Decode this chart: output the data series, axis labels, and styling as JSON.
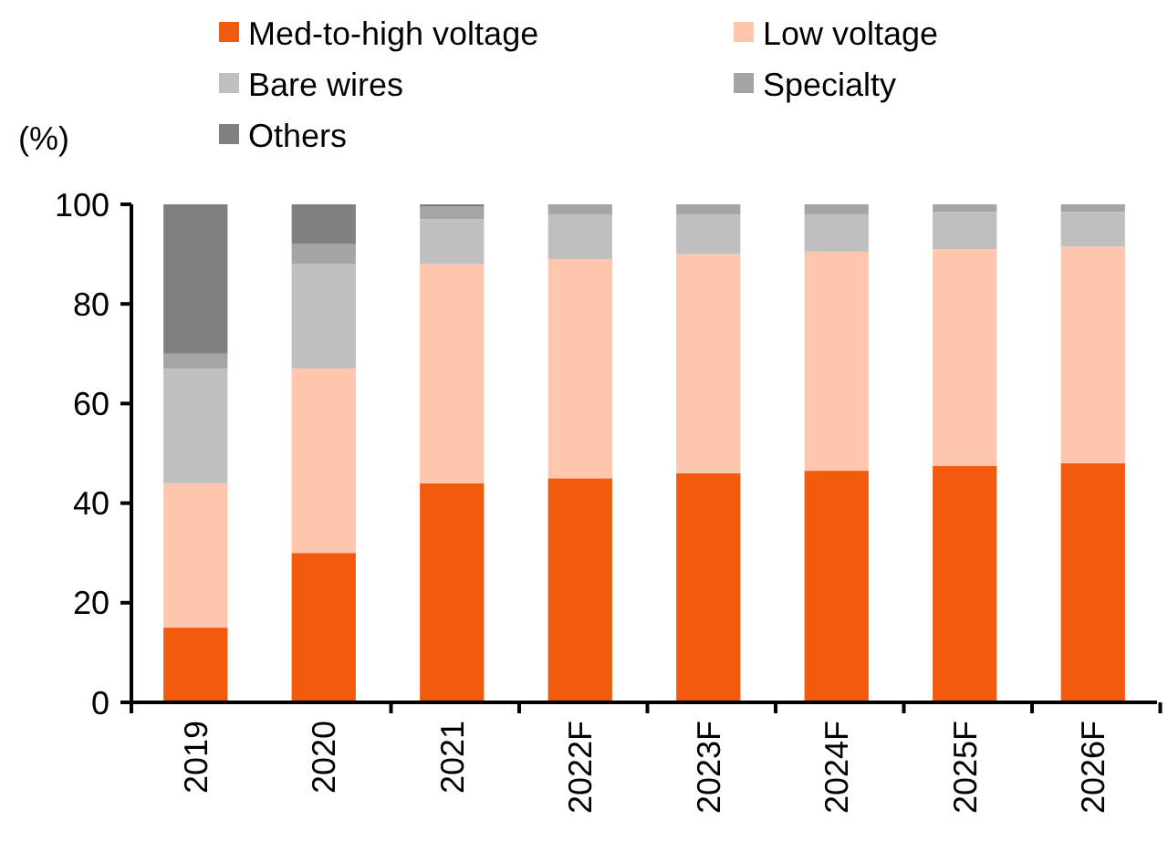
{
  "chart_data": {
    "type": "bar",
    "stacked": true,
    "ylabel": "(%)",
    "categories": [
      "2019",
      "2020",
      "2021",
      "2022F",
      "2023F",
      "2024F",
      "2025F",
      "2026F"
    ],
    "series": [
      {
        "name": "Med-to-high voltage",
        "color": "#f25a0e",
        "values": [
          15,
          30,
          44,
          45,
          46,
          46.5,
          47.5,
          48
        ]
      },
      {
        "name": "Low voltage",
        "color": "#fec6ac",
        "values": [
          29,
          37,
          44,
          44,
          44,
          44,
          43.5,
          43.5
        ]
      },
      {
        "name": "Bare wires",
        "color": "#bfbfbf",
        "values": [
          23,
          21,
          9,
          9,
          8,
          7.5,
          7.5,
          7
        ]
      },
      {
        "name": "Specialty",
        "color": "#a5a5a5",
        "values": [
          3,
          4,
          2.5,
          2,
          2,
          2,
          1.5,
          1.5
        ]
      },
      {
        "name": "Others",
        "color": "#808080",
        "values": [
          30,
          8,
          0.5,
          0,
          0,
          0,
          0,
          0
        ]
      }
    ],
    "ylim": [
      0,
      100
    ],
    "yticks": [
      0,
      20,
      40,
      60,
      80,
      100
    ],
    "legend": "top",
    "grid": false
  }
}
